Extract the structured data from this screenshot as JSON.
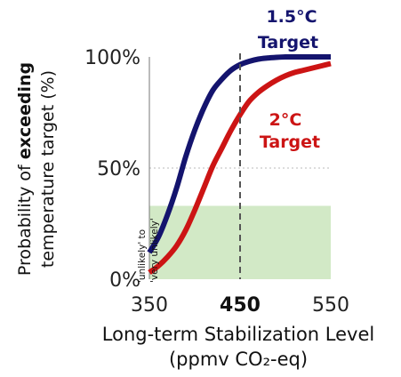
{
  "chart_data": {
    "type": "line",
    "x_range": [
      350,
      550
    ],
    "y_range": [
      0,
      100
    ],
    "x_ticks": [
      {
        "value": 350,
        "label": "350",
        "bold": false
      },
      {
        "value": 450,
        "label": "450",
        "bold": true
      },
      {
        "value": 550,
        "label": "550",
        "bold": false
      }
    ],
    "y_ticks": [
      {
        "value": 0,
        "label": "0%"
      },
      {
        "value": 50,
        "label": "50%"
      },
      {
        "value": 100,
        "label": "100%"
      }
    ],
    "xlabel_line1": "Long-term Stabilization Level",
    "xlabel_line2": "(ppmv CO₂-eq)",
    "ylabel_pre": "Probability of ",
    "ylabel_bold": "exceeding",
    "ylabel_line2": "temperature target (%)",
    "shaded_band": {
      "y_from": 0,
      "y_to": 33,
      "label_line1": "'unlikely' to",
      "label_line2": "'very unlikely'",
      "color": "#d2e9c6"
    },
    "reference_line": {
      "x": 450,
      "style": "dashed"
    },
    "gridline": {
      "y": 50,
      "style": "dotted"
    },
    "series": [
      {
        "name_line1": "1.5°C",
        "name_line2": "Target",
        "color": "#14146e",
        "x": [
          350,
          360,
          370,
          380,
          390,
          400,
          410,
          420,
          430,
          440,
          450,
          460,
          470,
          480,
          490,
          500,
          510,
          520,
          530,
          540,
          550
        ],
        "y": [
          12,
          19,
          29,
          41,
          55,
          67,
          77,
          85,
          90,
          94,
          96.5,
          98,
          99,
          99.5,
          99.8,
          100,
          100,
          100,
          100,
          100,
          100
        ]
      },
      {
        "name_line1": "2°C",
        "name_line2": "Target",
        "color": "#cc1414",
        "x": [
          350,
          360,
          370,
          380,
          390,
          400,
          410,
          420,
          430,
          440,
          450,
          460,
          470,
          480,
          490,
          500,
          510,
          520,
          530,
          540,
          550
        ],
        "y": [
          3,
          6,
          10,
          15,
          22,
          31,
          41,
          51,
          59,
          67,
          74,
          80,
          84,
          87,
          89.5,
          91.5,
          93,
          94,
          95,
          96,
          97
        ]
      }
    ]
  }
}
